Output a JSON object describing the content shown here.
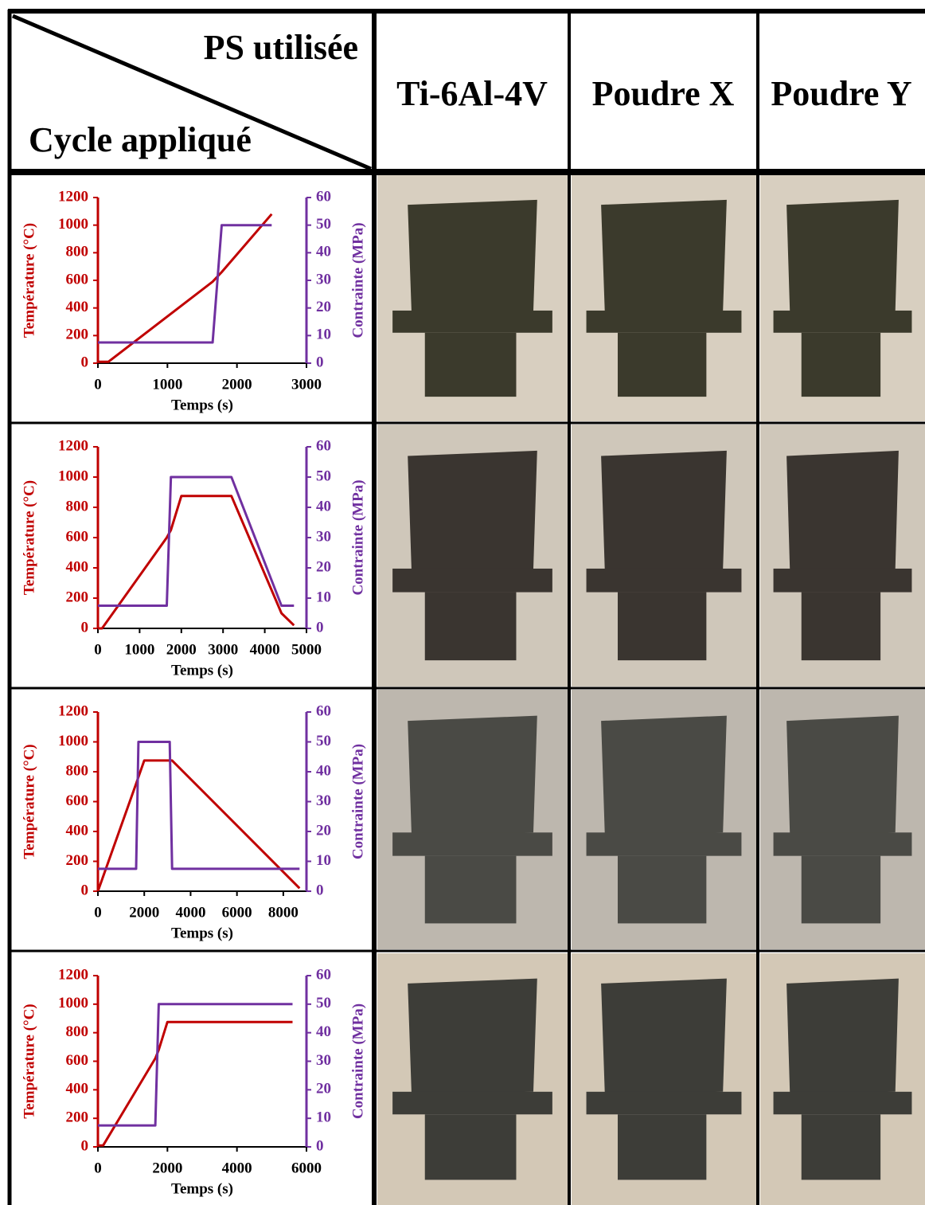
{
  "header": {
    "corner_top": "PS utilisée",
    "corner_bottom": "Cycle appliqué",
    "columns": [
      "Ti-6Al-4V",
      "Poudre X",
      "Poudre Y"
    ]
  },
  "chart_data": [
    {
      "type": "line",
      "xlabel": "Temps (s)",
      "ylabel": "Température (°C)",
      "y2label": "Contrainte (MPa)",
      "x": [
        0,
        150,
        1650,
        1780,
        2500
      ],
      "series": [
        {
          "color": "#c00000",
          "values": [
            10,
            10,
            590,
            660,
            1080
          ]
        },
        {
          "color": "#7030a0",
          "axis": "y2",
          "values": [
            7.5,
            7.5,
            7.5,
            50,
            50
          ]
        }
      ],
      "xlim": [
        0,
        3000
      ],
      "xticks": [
        0,
        1000,
        2000,
        3000
      ],
      "ylim": [
        0,
        1200
      ],
      "yticks": [
        0,
        200,
        400,
        600,
        800,
        1000,
        1200
      ],
      "y2lim": [
        0,
        60
      ],
      "y2ticks": [
        0,
        10,
        20,
        30,
        40,
        50,
        60
      ]
    },
    {
      "type": "line",
      "xlabel": "Temps (s)",
      "ylabel": "Température (°C)",
      "y2label": "Contrainte (MPa)",
      "x": [
        0,
        100,
        1650,
        1750,
        2000,
        3200,
        4400,
        4700
      ],
      "series": [
        {
          "color": "#c00000",
          "values": [
            0,
            0,
            600,
            650,
            875,
            875,
            100,
            20
          ]
        },
        {
          "color": "#7030a0",
          "axis": "y2",
          "values": [
            7.5,
            7.5,
            7.5,
            50,
            50,
            50,
            7.5,
            7.5
          ]
        }
      ],
      "xlim": [
        0,
        5000
      ],
      "xticks": [
        0,
        1000,
        2000,
        3000,
        4000,
        5000
      ],
      "ylim": [
        0,
        1200
      ],
      "yticks": [
        0,
        200,
        400,
        600,
        800,
        1000,
        1200
      ],
      "y2lim": [
        0,
        60
      ],
      "y2ticks": [
        0,
        10,
        20,
        30,
        40,
        50,
        60
      ]
    },
    {
      "type": "line",
      "xlabel": "Temps (s)",
      "ylabel": "Température (°C)",
      "y2label": "Contrainte (MPa)",
      "x": [
        0,
        1650,
        1750,
        2000,
        3100,
        3200,
        8700
      ],
      "series": [
        {
          "color": "#c00000",
          "values": [
            0,
            720,
            765,
            875,
            875,
            875,
            20
          ]
        },
        {
          "color": "#7030a0",
          "axis": "y2",
          "values": [
            7.5,
            7.5,
            50,
            50,
            50,
            7.5,
            7.5
          ]
        }
      ],
      "xlim": [
        0,
        9000
      ],
      "xticks": [
        0,
        2000,
        4000,
        6000,
        8000
      ],
      "ylim": [
        0,
        1200
      ],
      "yticks": [
        0,
        200,
        400,
        600,
        800,
        1000,
        1200
      ],
      "y2lim": [
        0,
        60
      ],
      "y2ticks": [
        0,
        10,
        20,
        30,
        40,
        50,
        60
      ]
    },
    {
      "type": "line",
      "xlabel": "Temps (s)",
      "ylabel": "Température (°C)",
      "y2label": "Contrainte (MPa)",
      "x": [
        0,
        150,
        1650,
        1750,
        2000,
        5600
      ],
      "series": [
        {
          "color": "#c00000",
          "values": [
            10,
            10,
            620,
            680,
            875,
            875
          ]
        },
        {
          "color": "#7030a0",
          "axis": "y2",
          "values": [
            7.5,
            7.5,
            7.5,
            50,
            50,
            50
          ]
        }
      ],
      "xlim": [
        0,
        6000
      ],
      "xticks": [
        0,
        2000,
        4000,
        6000
      ],
      "ylim": [
        0,
        1200
      ],
      "yticks": [
        0,
        200,
        400,
        600,
        800,
        1000,
        1200
      ],
      "y2lim": [
        0,
        60
      ],
      "y2ticks": [
        0,
        10,
        20,
        30,
        40,
        50,
        60
      ]
    }
  ]
}
